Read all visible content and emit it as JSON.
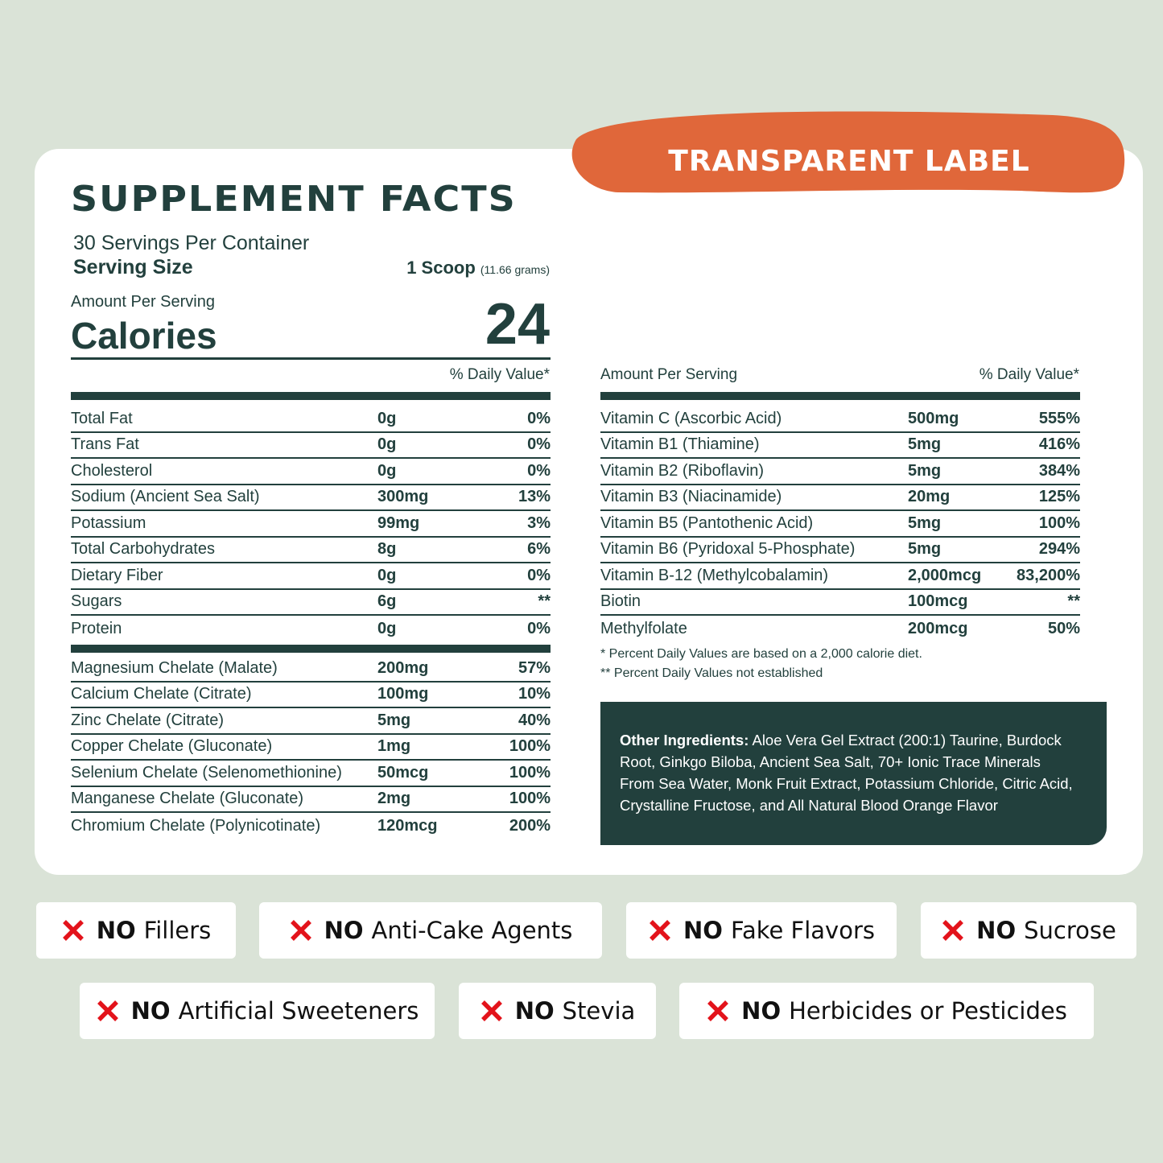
{
  "label_tag": "TRANSPARENT LABEL",
  "title": "SUPPLEMENT FACTS",
  "servings": "30 Servings Per Container",
  "serving_size": {
    "label": "Serving Size",
    "amount": "1 Scoop",
    "detail": "(11.66 grams)"
  },
  "calories": {
    "header": "Amount Per Serving",
    "label": "Calories",
    "value": "24"
  },
  "left_header": {
    "dv": "% Daily Value*"
  },
  "nutrients": [
    [
      "Total Fat",
      "0g",
      "0%"
    ],
    [
      "Trans Fat",
      "0g",
      "0%"
    ],
    [
      "Cholesterol",
      "0g",
      "0%"
    ],
    [
      "Sodium (Ancient Sea Salt)",
      "300mg",
      "13%"
    ],
    [
      "Potassium",
      "99mg",
      "3%"
    ],
    [
      "Total Carbohydrates",
      "8g",
      "6%"
    ],
    [
      "Dietary Fiber",
      "0g",
      "0%"
    ],
    [
      "Sugars",
      "6g",
      "**"
    ],
    [
      "Protein",
      "0g",
      "0%"
    ]
  ],
  "minerals": [
    [
      "Magnesium Chelate (Malate)",
      "200mg",
      "57%"
    ],
    [
      "Calcium Chelate (Citrate)",
      "100mg",
      "10%"
    ],
    [
      "Zinc Chelate (Citrate)",
      "5mg",
      "40%"
    ],
    [
      "Copper Chelate (Gluconate)",
      "1mg",
      "100%"
    ],
    [
      "Selenium Chelate (Selenomethionine)",
      "50mcg",
      "100%"
    ],
    [
      "Manganese Chelate (Gluconate)",
      "2mg",
      "100%"
    ],
    [
      "Chromium Chelate (Polynicotinate)",
      "120mcg",
      "200%"
    ]
  ],
  "right_header": {
    "amount": "Amount Per Serving",
    "dv": "% Daily Value*"
  },
  "vitamins": [
    [
      "Vitamin C (Ascorbic Acid)",
      "500mg",
      "555%"
    ],
    [
      "Vitamin B1 (Thiamine)",
      "5mg",
      "416%"
    ],
    [
      "Vitamin B2 (Riboflavin)",
      "5mg",
      "384%"
    ],
    [
      "Vitamin B3 (Niacinamide)",
      "20mg",
      "125%"
    ],
    [
      "Vitamin B5 (Pantothenic Acid)",
      "5mg",
      "100%"
    ],
    [
      "Vitamin B6 (Pyridoxal 5-Phosphate)",
      "5mg",
      "294%"
    ],
    [
      "Vitamin B-12 (Methylcobalamin)",
      "2,000mcg",
      "83,200%"
    ],
    [
      "Biotin",
      "100mcg",
      "**"
    ],
    [
      "Methylfolate",
      "200mcg",
      "50%"
    ]
  ],
  "footnotes": [
    "*  Percent Daily Values are based on a 2,000 calorie diet.",
    "** Percent Daily Values not established"
  ],
  "other_ingredients": {
    "label": "Other Ingredients:",
    "text": "Aloe Vera Gel Extract (200:1) Taurine, Burdock Root, Ginkgo Biloba, Ancient Sea Salt, 70+ Ionic Trace Minerals From Sea Water, Monk Fruit Extract, Potassium Chloride, Citric Acid, Crystalline Fructose, and All Natural Blood Orange Flavor"
  },
  "badges": [
    [
      {
        "prefix": "NO",
        "text": "Fillers"
      },
      {
        "prefix": "NO",
        "text": "Anti-Cake Agents"
      },
      {
        "prefix": "NO",
        "text": "Fake Flavors"
      },
      {
        "prefix": "NO",
        "text": "Sucrose"
      }
    ],
    [
      {
        "prefix": "NO",
        "text": "Artificial Sweeteners"
      },
      {
        "prefix": "NO",
        "text": "Stevia"
      },
      {
        "prefix": "NO",
        "text": "Herbicides or Pesticides"
      }
    ]
  ]
}
